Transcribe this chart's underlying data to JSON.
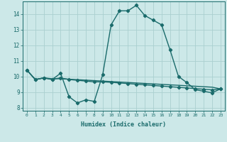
{
  "title": "",
  "xlabel": "Humidex (Indice chaleur)",
  "ylabel": "",
  "bg_color": "#cce8e8",
  "line_color": "#1a6b6b",
  "grid_color": "#aad0d0",
  "xlim": [
    -0.5,
    23.5
  ],
  "ylim": [
    7.8,
    14.8
  ],
  "yticks": [
    8,
    9,
    10,
    11,
    12,
    13,
    14
  ],
  "xticks": [
    0,
    1,
    2,
    3,
    4,
    5,
    6,
    7,
    8,
    9,
    10,
    11,
    12,
    13,
    14,
    15,
    16,
    17,
    18,
    19,
    20,
    21,
    22,
    23
  ],
  "series1": [
    10.4,
    9.8,
    9.9,
    9.8,
    10.2,
    8.7,
    8.3,
    8.5,
    8.4,
    10.1,
    13.3,
    14.2,
    14.2,
    14.55,
    13.9,
    13.6,
    13.3,
    11.7,
    10.0,
    9.6,
    9.15,
    9.05,
    8.95,
    9.2
  ],
  "series2": [
    10.4,
    9.8,
    9.9,
    9.82,
    9.9,
    9.8,
    9.75,
    9.7,
    9.65,
    9.65,
    9.62,
    9.58,
    9.54,
    9.5,
    9.46,
    9.42,
    9.38,
    9.34,
    9.3,
    9.26,
    9.22,
    9.18,
    9.14,
    9.2
  ],
  "series3": [
    10.4,
    9.8,
    9.9,
    9.85,
    9.85,
    9.82,
    9.79,
    9.76,
    9.73,
    9.7,
    9.67,
    9.64,
    9.61,
    9.58,
    9.55,
    9.52,
    9.49,
    9.46,
    9.43,
    9.4,
    9.37,
    9.34,
    9.31,
    9.2
  ],
  "marker": "D",
  "markersize": 2.2,
  "linewidth": 1.0
}
